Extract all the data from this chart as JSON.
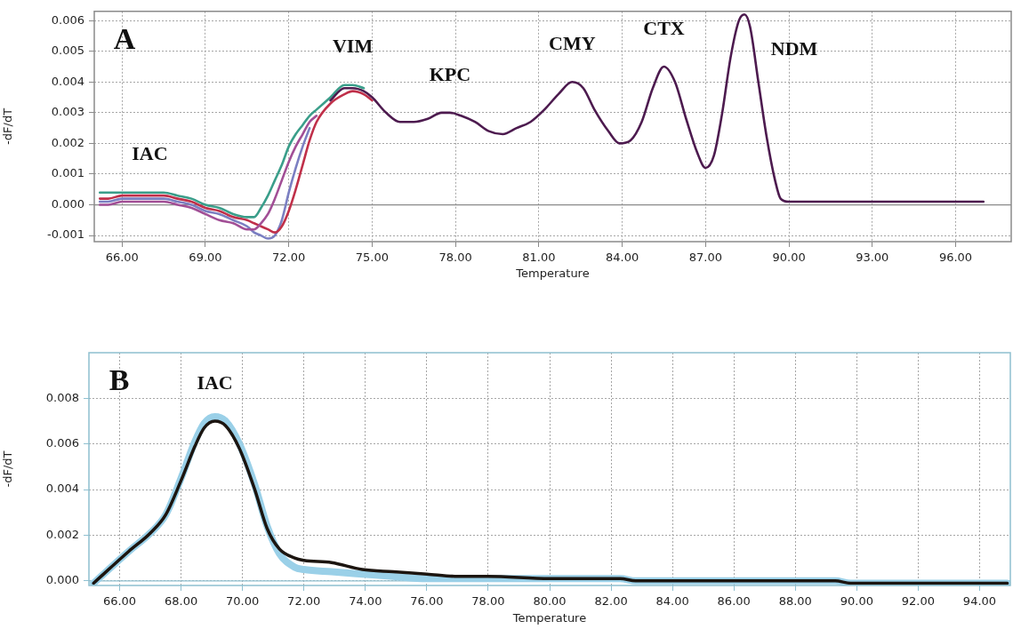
{
  "chart_data": [
    {
      "type": "line",
      "xlabel": "Temperature",
      "ylabel": "-dF/dT",
      "xlim": [
        65,
        98
      ],
      "ylim": [
        -0.0012,
        0.0063
      ],
      "xticks": [
        {
          "value": 66,
          "label": "66.00"
        },
        {
          "value": 69,
          "label": "69.00"
        },
        {
          "value": 72,
          "label": "72.00"
        },
        {
          "value": 75,
          "label": "75.00"
        },
        {
          "value": 78,
          "label": "78.00"
        },
        {
          "value": 81,
          "label": "81.00"
        },
        {
          "value": 84,
          "label": "84.00"
        },
        {
          "value": 87,
          "label": "87.00"
        },
        {
          "value": 90,
          "label": "90.00"
        },
        {
          "value": 93,
          "label": "93.00"
        },
        {
          "value": 96,
          "label": "96.00"
        }
      ],
      "yticks": [
        -0.001,
        {
          "value": 0,
          "label": "0.000"
        },
        0.001,
        0.002,
        0.003,
        0.004,
        0.005,
        0.006
      ],
      "grid": true,
      "ref_lines": [
        {
          "axis": "y",
          "value": 0,
          "color": "#8a8a8a"
        }
      ],
      "annotations": [
        "A",
        {
          "text": "IAC",
          "x": 67,
          "y": 0.0004
        },
        {
          "text": "VIM",
          "x": 74.3,
          "y": 0.0039
        },
        {
          "text": "KPC",
          "x": 77.8,
          "y": 0.003
        },
        {
          "text": "CMY",
          "x": 82.2,
          "y": 0.004
        },
        {
          "text": "CTX",
          "x": 85.5,
          "y": 0.0045
        },
        {
          "text": "NDM",
          "x": 88.4,
          "y": 0.0062
        }
      ],
      "x": [
        65.2,
        65.5,
        66,
        66.5,
        67,
        67.5,
        68,
        68.5,
        69,
        69.5,
        70,
        70.5,
        70.75,
        71,
        71.25,
        71.5,
        71.75,
        72,
        72.25,
        72.5,
        72.75,
        73,
        73.5,
        74,
        74.3,
        74.7,
        75,
        75.5,
        76,
        76.5,
        77,
        77.5,
        77.8,
        78.2,
        78.7,
        79.2,
        79.7,
        80.2,
        80.7,
        81.2,
        81.7,
        82.2,
        82.6,
        83,
        83.5,
        83.9,
        84.3,
        84.7,
        85.1,
        85.5,
        85.9,
        86.3,
        86.7,
        87,
        87.3,
        87.6,
        87.9,
        88.2,
        88.4,
        88.6,
        88.9,
        89.2,
        89.5,
        89.7,
        90,
        93,
        94,
        97
      ],
      "series": [
        {
          "color": "#3a9e8a",
          "values": [
            0.0004,
            0.0004,
            0.0004,
            0.0004,
            0.0004,
            0.0004,
            0.0003,
            0.0002,
            0.0,
            -0.0001,
            -0.0003,
            -0.0004,
            -0.0004,
            -0.0001,
            0.0003,
            0.0008,
            0.0013,
            0.0019,
            0.0023,
            0.0026,
            0.0029,
            0.0031,
            0.0035,
            0.0039,
            0.0039,
            0.0038,
            null,
            null,
            null,
            null,
            null,
            null,
            null,
            null,
            null,
            null,
            null,
            null,
            null,
            null,
            null,
            null,
            null,
            null,
            null,
            null,
            null,
            null,
            null,
            null,
            null,
            null,
            null,
            null,
            null,
            null,
            null,
            null,
            null,
            null,
            null,
            null,
            null,
            null,
            null,
            null,
            null,
            null
          ]
        },
        {
          "color": "#7b7fc2",
          "values": [
            0.0001,
            0.0001,
            0.0002,
            0.0002,
            0.0002,
            0.0002,
            0.0001,
            0.0,
            -0.0002,
            -0.0003,
            -0.0005,
            -0.0007,
            -0.0009,
            -0.001,
            -0.0011,
            -0.001,
            -0.0005,
            0.0004,
            0.0012,
            0.0019,
            0.0025,
            null,
            null,
            null,
            null,
            null,
            null,
            null,
            null,
            null,
            null,
            null,
            null,
            null,
            null,
            null,
            null,
            null,
            null,
            null,
            null,
            null,
            null,
            null,
            null,
            null,
            null,
            null,
            null,
            null,
            null,
            null,
            null,
            null,
            null,
            null,
            null,
            null,
            null,
            null,
            null,
            null,
            null,
            null,
            null,
            null,
            null,
            null
          ]
        },
        {
          "color": "#c0304a",
          "values": [
            0.0002,
            0.0002,
            0.0003,
            0.0003,
            0.0003,
            0.0003,
            0.0002,
            0.0001,
            -0.0001,
            -0.0002,
            -0.0004,
            -0.0005,
            -0.0006,
            -0.0007,
            -0.0008,
            -0.0009,
            -0.0007,
            -0.0002,
            0.0005,
            0.0013,
            0.0021,
            0.0027,
            0.0033,
            0.0036,
            0.0037,
            0.0036,
            0.0034,
            null,
            null,
            null,
            null,
            null,
            null,
            null,
            null,
            null,
            null,
            null,
            null,
            null,
            null,
            null,
            null,
            null,
            null,
            null,
            null,
            null,
            null,
            null,
            null,
            null,
            null,
            null,
            null,
            null,
            null,
            null,
            null,
            null,
            null,
            null,
            null,
            null,
            null,
            null,
            null,
            null
          ]
        },
        {
          "color": "#a24f96",
          "values": [
            0.0,
            0.0,
            0.0001,
            0.0001,
            0.0001,
            0.0001,
            0.0,
            -0.0001,
            -0.0003,
            -0.0005,
            -0.0006,
            -0.0008,
            -0.0008,
            -0.0006,
            -0.0003,
            0.0002,
            0.0008,
            0.0014,
            0.0019,
            0.0023,
            0.0027,
            0.0029,
            null,
            null,
            null,
            null,
            null,
            null,
            null,
            null,
            null,
            null,
            null,
            null,
            null,
            null,
            null,
            null,
            null,
            null,
            null,
            null,
            null,
            null,
            null,
            null,
            null,
            null,
            null,
            null,
            null,
            null,
            null,
            null,
            null,
            null,
            null,
            null,
            null,
            null,
            null,
            null,
            null,
            null,
            null,
            null,
            null,
            null
          ]
        },
        {
          "color": "#4d1b4f",
          "values": [
            null,
            null,
            null,
            null,
            null,
            null,
            null,
            null,
            null,
            null,
            null,
            null,
            null,
            null,
            null,
            null,
            null,
            null,
            null,
            null,
            null,
            null,
            0.0034,
            0.0038,
            0.0038,
            0.0037,
            0.0035,
            0.003,
            0.0027,
            0.0027,
            0.0028,
            0.003,
            0.003,
            0.0029,
            0.0027,
            0.0024,
            0.0023,
            0.0025,
            0.0027,
            0.0031,
            0.0036,
            0.004,
            0.0038,
            0.0031,
            0.0024,
            0.002,
            0.0021,
            0.0027,
            0.0038,
            0.0045,
            0.004,
            0.0028,
            0.0017,
            0.0012,
            0.0016,
            0.003,
            0.0048,
            0.006,
            0.0062,
            0.0058,
            0.004,
            0.0022,
            0.0008,
            0.0002,
            0.0001,
            0.0001,
            0.0001,
            0.0001
          ]
        }
      ]
    },
    {
      "type": "line",
      "xlabel": "Temperature",
      "ylabel": "-dF/dT",
      "xlim": [
        65,
        95
      ],
      "ylim": [
        -0.0002,
        0.01
      ],
      "xticks": [
        {
          "value": 66,
          "label": "66.00"
        },
        {
          "value": 68,
          "label": "68.00"
        },
        {
          "value": 70,
          "label": "70.00"
        },
        {
          "value": 72,
          "label": "72.00"
        },
        {
          "value": 74,
          "label": "74.00"
        },
        {
          "value": 76,
          "label": "76.00"
        },
        {
          "value": 78,
          "label": "78.00"
        },
        {
          "value": 80,
          "label": "80.00"
        },
        {
          "value": 82,
          "label": "82.00"
        },
        {
          "value": 84,
          "label": "84.00"
        },
        {
          "value": 86,
          "label": "86.00"
        },
        {
          "value": 88,
          "label": "88.00"
        },
        {
          "value": 90,
          "label": "90.00"
        },
        {
          "value": 92,
          "label": "92.00"
        },
        {
          "value": 94,
          "label": "94.00"
        }
      ],
      "yticks": [
        {
          "value": 0,
          "label": "0.000"
        },
        0.002,
        0.004,
        0.006,
        0.008
      ],
      "grid": true,
      "ref_lines": [
        {
          "axis": "y",
          "value": 0,
          "color": "#8fc0d0"
        }
      ],
      "annotations": [
        "B",
        {
          "text": "IAC",
          "x": 69.1,
          "y": 0.007
        }
      ],
      "x": [
        65.15,
        66.3,
        67,
        67.5,
        68,
        68.45,
        68.75,
        69.1,
        69.45,
        69.9,
        70.4,
        70.8,
        71.2,
        71.7,
        72,
        72.9,
        73.9,
        74.9,
        76,
        77,
        78,
        80,
        82.3,
        82.8,
        89.3,
        89.8,
        94.9
      ],
      "series": [
        {
          "color": "#9ad0e8",
          "values": [
            -0.0001,
            0.0013,
            0.0021,
            0.0029,
            0.0045,
            0.0061,
            0.0069,
            0.0072,
            0.007,
            0.006,
            0.0042,
            0.0024,
            0.0012,
            0.0006,
            0.0005,
            0.0004,
            0.0003,
            0.0002,
            0.0001,
            0.0001,
            0.0001,
            0.0001,
            0.0001,
            0.0,
            0.0,
            -0.0001,
            -0.0001
          ]
        },
        {
          "color": "#1c1510",
          "values": [
            -0.0001,
            0.0013,
            0.0021,
            0.0029,
            0.0044,
            0.0059,
            0.0067,
            0.007,
            0.0068,
            0.0058,
            0.004,
            0.0023,
            0.0014,
            0.001,
            0.0009,
            0.0008,
            0.0005,
            0.0004,
            0.0003,
            0.0002,
            0.0002,
            0.0001,
            0.0001,
            0.0,
            0.0,
            -0.0001,
            -0.0001
          ]
        }
      ]
    }
  ]
}
